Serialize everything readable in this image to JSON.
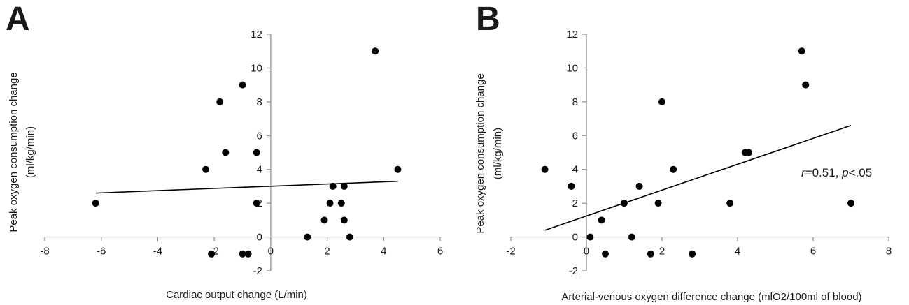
{
  "panels": [
    {
      "letter": "A",
      "chart_data": {
        "type": "scatter",
        "xlabel": "Cardiac output change (L/min)",
        "ylabel_line1": "Peak oxygen consumption change",
        "ylabel_line2": "(ml/kg/min)",
        "xlim": [
          -8,
          6
        ],
        "ylim": [
          -2,
          12
        ],
        "xticks": [
          -8,
          -6,
          -4,
          -2,
          0,
          2,
          4,
          6
        ],
        "yticks": [
          -2,
          0,
          2,
          4,
          6,
          8,
          10,
          12
        ],
        "axes_cross_at": {
          "x": 0,
          "y": 0
        },
        "grid": false,
        "points": [
          {
            "x": -6.2,
            "y": 2
          },
          {
            "x": -2.3,
            "y": 4
          },
          {
            "x": -2.1,
            "y": -1
          },
          {
            "x": -1.8,
            "y": 8
          },
          {
            "x": -1.6,
            "y": 5
          },
          {
            "x": -1.0,
            "y": 9
          },
          {
            "x": -1.0,
            "y": -1
          },
          {
            "x": -0.8,
            "y": -1
          },
          {
            "x": -0.5,
            "y": 5
          },
          {
            "x": -0.5,
            "y": 2
          },
          {
            "x": 1.3,
            "y": 0
          },
          {
            "x": 1.9,
            "y": 1
          },
          {
            "x": 2.1,
            "y": 2
          },
          {
            "x": 2.2,
            "y": 3
          },
          {
            "x": 2.5,
            "y": 2
          },
          {
            "x": 2.6,
            "y": 3
          },
          {
            "x": 2.6,
            "y": 1
          },
          {
            "x": 2.8,
            "y": 0
          },
          {
            "x": 3.7,
            "y": 11
          },
          {
            "x": 4.5,
            "y": 4
          }
        ],
        "trendline": {
          "x": [
            -6.2,
            4.5
          ],
          "y": [
            2.6,
            3.3
          ]
        },
        "annotation": ""
      }
    },
    {
      "letter": "B",
      "chart_data": {
        "type": "scatter",
        "xlabel": "Arterial-venous oxygen difference change (mlO2/100ml of blood)",
        "ylabel_line1": "Peak oxygen consumption change",
        "ylabel_line2": "(ml/kg/min)",
        "xlim": [
          -2,
          8
        ],
        "ylim": [
          -2,
          12
        ],
        "xticks": [
          -2,
          0,
          2,
          4,
          6,
          8
        ],
        "yticks": [
          -2,
          0,
          2,
          4,
          6,
          8,
          10,
          12
        ],
        "axes_cross_at": {
          "x": 0,
          "y": 0
        },
        "grid": false,
        "points": [
          {
            "x": -1.1,
            "y": 4
          },
          {
            "x": -0.4,
            "y": 3
          },
          {
            "x": 0.1,
            "y": 0
          },
          {
            "x": 0.4,
            "y": 1
          },
          {
            "x": 0.5,
            "y": -1
          },
          {
            "x": 1.0,
            "y": 2
          },
          {
            "x": 1.2,
            "y": 0
          },
          {
            "x": 1.4,
            "y": 3
          },
          {
            "x": 1.7,
            "y": -1
          },
          {
            "x": 1.9,
            "y": 2
          },
          {
            "x": 2.0,
            "y": 8
          },
          {
            "x": 2.3,
            "y": 4
          },
          {
            "x": 2.8,
            "y": -1
          },
          {
            "x": 3.8,
            "y": 2
          },
          {
            "x": 4.2,
            "y": 5
          },
          {
            "x": 4.3,
            "y": 5
          },
          {
            "x": 5.7,
            "y": 11
          },
          {
            "x": 5.8,
            "y": 9
          },
          {
            "x": 7.0,
            "y": 2
          }
        ],
        "trendline": {
          "x": [
            -1.1,
            7.0
          ],
          "y": [
            0.4,
            6.6
          ]
        },
        "annotation_r": "r",
        "annotation_r_value": "=0.51, ",
        "annotation_p": "p",
        "annotation_p_value": "<.05"
      }
    }
  ]
}
